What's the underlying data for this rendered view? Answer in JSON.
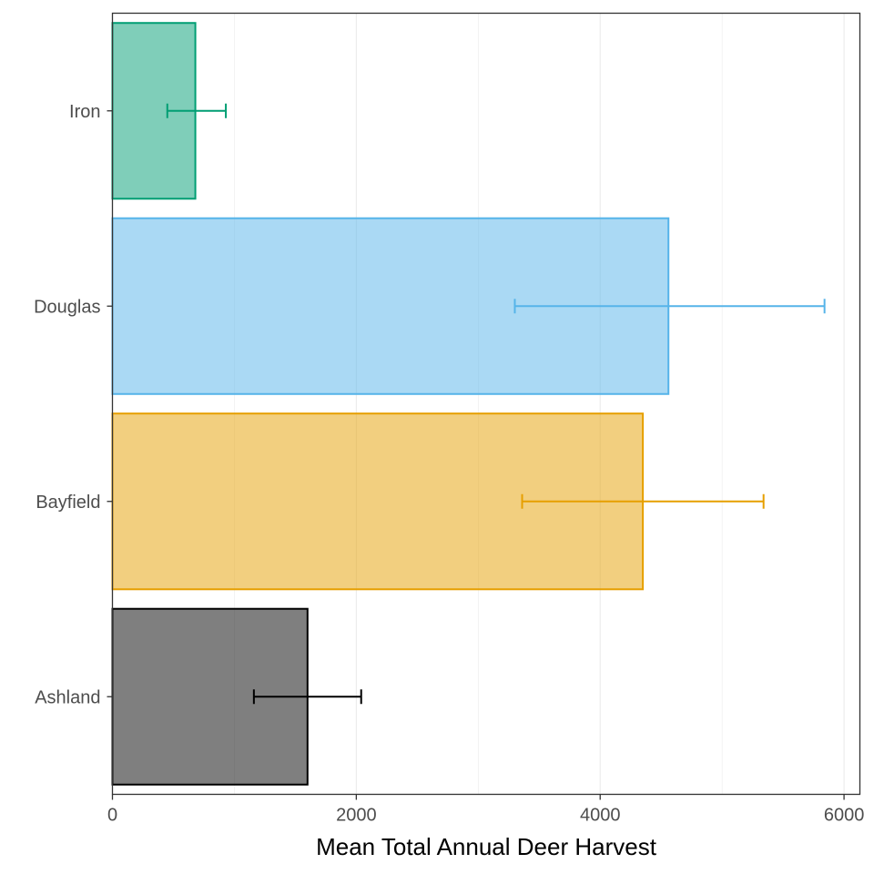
{
  "chart_data": {
    "type": "bar",
    "orientation": "horizontal",
    "title": "",
    "xlabel": "Mean Total Annual Deer Harvest",
    "ylabel": "",
    "xlim": [
      0,
      6130
    ],
    "x_ticks": [
      0,
      2000,
      4000,
      6000
    ],
    "x_tick_labels": [
      "0",
      "2000",
      "4000",
      "6000"
    ],
    "grid": "vertical major and minor lines",
    "legend": "none",
    "categories": [
      "Iron",
      "Douglas",
      "Bayfield",
      "Ashland"
    ],
    "values": [
      680,
      4560,
      4350,
      1600
    ],
    "error_low": [
      450,
      3300,
      3360,
      1160
    ],
    "error_high": [
      930,
      5840,
      5340,
      2040
    ],
    "colors": {
      "Iron": "#009E73",
      "Douglas": "#56B4E9",
      "Bayfield": "#E69F00",
      "Ashland": "#000000"
    },
    "fill_opacity": 0.5
  }
}
